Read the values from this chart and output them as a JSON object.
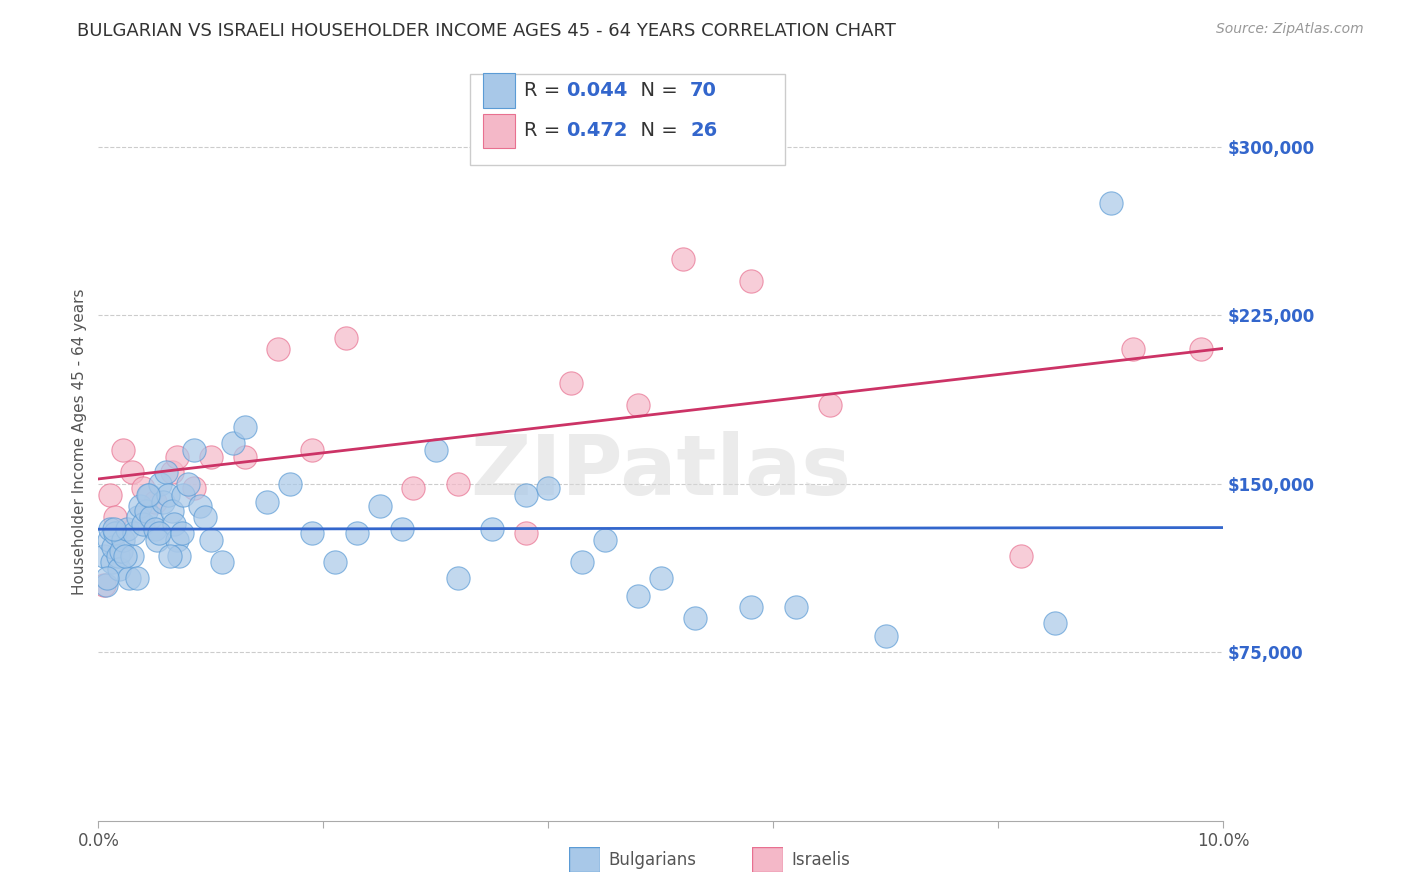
{
  "title": "BULGARIAN VS ISRAELI HOUSEHOLDER INCOME AGES 45 - 64 YEARS CORRELATION CHART",
  "source": "Source: ZipAtlas.com",
  "ylabel": "Householder Income Ages 45 - 64 years",
  "watermark": "ZIPatlas",
  "xlim": [
    0.0,
    10.0
  ],
  "ylim": [
    0,
    337500
  ],
  "yticks": [
    75000,
    150000,
    225000,
    300000
  ],
  "ytick_labels": [
    "$75,000",
    "$150,000",
    "$225,000",
    "$300,000"
  ],
  "xticks": [
    0.0,
    2.0,
    4.0,
    6.0,
    8.0,
    10.0
  ],
  "xtick_labels": [
    "0.0%",
    "",
    "",
    "",
    "",
    "10.0%"
  ],
  "blue_scatter_color": "#a8c8e8",
  "blue_edge_color": "#5b9bd5",
  "pink_scatter_color": "#f4b8c8",
  "pink_edge_color": "#e87090",
  "blue_line_color": "#3366cc",
  "pink_line_color": "#cc3366",
  "ytick_label_color": "#3366cc",
  "legend_R_black": "#333333",
  "legend_val_color": "#3366cc",
  "bulgarians_x": [
    0.05,
    0.07,
    0.09,
    0.1,
    0.12,
    0.13,
    0.15,
    0.17,
    0.18,
    0.2,
    0.22,
    0.25,
    0.27,
    0.3,
    0.32,
    0.35,
    0.37,
    0.4,
    0.42,
    0.45,
    0.47,
    0.5,
    0.52,
    0.55,
    0.57,
    0.6,
    0.62,
    0.65,
    0.67,
    0.7,
    0.72,
    0.75,
    0.8,
    0.85,
    0.9,
    0.95,
    1.0,
    1.1,
    1.2,
    1.3,
    1.5,
    1.7,
    1.9,
    2.1,
    2.3,
    2.5,
    2.7,
    3.0,
    3.2,
    3.5,
    3.8,
    4.0,
    4.3,
    4.5,
    4.8,
    5.0,
    5.3,
    5.8,
    6.2,
    7.0,
    8.5,
    9.0,
    0.08,
    0.14,
    0.24,
    0.34,
    0.44,
    0.54,
    0.64,
    0.74
  ],
  "bulgarians_y": [
    118000,
    105000,
    125000,
    130000,
    115000,
    122000,
    128000,
    118000,
    112000,
    120000,
    125000,
    130000,
    108000,
    118000,
    128000,
    135000,
    140000,
    132000,
    138000,
    145000,
    135000,
    130000,
    125000,
    150000,
    142000,
    155000,
    145000,
    138000,
    132000,
    125000,
    118000,
    145000,
    150000,
    165000,
    140000,
    135000,
    125000,
    115000,
    168000,
    175000,
    142000,
    150000,
    128000,
    115000,
    128000,
    140000,
    130000,
    165000,
    108000,
    130000,
    145000,
    148000,
    115000,
    125000,
    100000,
    108000,
    90000,
    95000,
    95000,
    82000,
    88000,
    275000,
    108000,
    130000,
    118000,
    108000,
    145000,
    128000,
    118000,
    128000
  ],
  "israelis_x": [
    0.05,
    0.1,
    0.15,
    0.22,
    0.3,
    0.4,
    0.5,
    0.65,
    0.7,
    0.85,
    1.0,
    1.3,
    1.6,
    1.9,
    2.2,
    2.8,
    3.2,
    3.8,
    4.2,
    4.8,
    5.2,
    5.8,
    6.5,
    8.2,
    9.2,
    9.8
  ],
  "israelis_y": [
    105000,
    145000,
    135000,
    165000,
    155000,
    148000,
    142000,
    155000,
    162000,
    148000,
    162000,
    162000,
    210000,
    165000,
    215000,
    148000,
    150000,
    128000,
    195000,
    185000,
    250000,
    240000,
    185000,
    118000,
    210000,
    210000
  ],
  "bulgarians_legend": "Bulgarians",
  "israelis_legend": "Israelis",
  "title_fontsize": 13,
  "axis_label_fontsize": 11,
  "tick_fontsize": 12,
  "legend_fontsize": 14,
  "source_fontsize": 10,
  "background_color": "#ffffff",
  "grid_color": "#cccccc",
  "watermark_color": "#d8d8d8"
}
